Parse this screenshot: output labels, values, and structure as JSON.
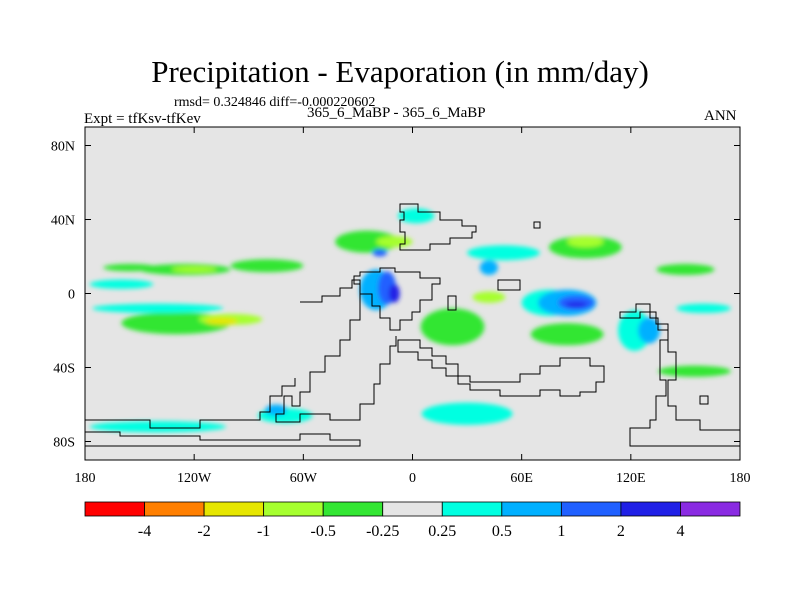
{
  "chart_data": {
    "type": "heatmap",
    "title": "Precipitation - Evaporation (in mm/day)",
    "stats_line": "rmsd= 0.324846 diff=-0.000220602",
    "experiment_label": "Expt = tfKsv-tfKev",
    "subtitle": "365_6_MaBP - 365_6_MaBP",
    "season": "ANN",
    "xlim": [
      -180,
      180
    ],
    "ylim": [
      -90,
      90
    ],
    "x_ticks": [
      {
        "value": -180,
        "label": "180"
      },
      {
        "value": -120,
        "label": "120W"
      },
      {
        "value": -60,
        "label": "60W"
      },
      {
        "value": 0,
        "label": "0"
      },
      {
        "value": 60,
        "label": "60E"
      },
      {
        "value": 120,
        "label": "120E"
      },
      {
        "value": 180,
        "label": "180"
      }
    ],
    "y_ticks": [
      {
        "value": 80,
        "label": "80N"
      },
      {
        "value": 40,
        "label": "40N"
      },
      {
        "value": 0,
        "label": "0"
      },
      {
        "value": -40,
        "label": "40S"
      },
      {
        "value": -80,
        "label": "80S"
      }
    ],
    "colorbar": {
      "colors": [
        "#ff0000",
        "#ff7f00",
        "#e6e600",
        "#a6ff2f",
        "#33e633",
        "#e5e5e5",
        "#00ffe1",
        "#00b0ff",
        "#2060ff",
        "#2020e6",
        "#8a2be2"
      ],
      "labels": [
        "-4",
        "-2",
        "-1",
        "-0.5",
        "-0.25",
        "0.25",
        "0.5",
        "1",
        "2",
        "4"
      ]
    },
    "background_color": "#e5e5e5",
    "anomaly_regions": [
      {
        "level": "-0.5",
        "lon": -155,
        "lat": 14,
        "dlon": 30,
        "dlat": 4
      },
      {
        "level": "-0.5",
        "lon": -125,
        "lat": 13,
        "dlon": 50,
        "dlat": 6
      },
      {
        "level": "-0.5",
        "lon": -80,
        "lat": 15,
        "dlon": 40,
        "dlat": 7
      },
      {
        "level": "-0.5",
        "lon": -130,
        "lat": -16,
        "dlon": 60,
        "dlat": 12
      },
      {
        "level": "-0.5",
        "lon": -25,
        "lat": 28,
        "dlon": 35,
        "dlat": 12
      },
      {
        "level": "-0.5",
        "lon": 22,
        "lat": -18,
        "dlon": 35,
        "dlat": 20
      },
      {
        "level": "-0.5",
        "lon": 85,
        "lat": -22,
        "dlon": 40,
        "dlat": 12
      },
      {
        "level": "-0.5",
        "lon": 95,
        "lat": 25,
        "dlon": 40,
        "dlat": 12
      },
      {
        "level": "-0.5",
        "lon": 150,
        "lat": 13,
        "dlon": 32,
        "dlat": 6
      },
      {
        "level": "-0.5",
        "lon": 155,
        "lat": -42,
        "dlon": 40,
        "dlat": 6
      },
      {
        "level": "-1",
        "lon": -100,
        "lat": -14,
        "dlon": 35,
        "dlat": 6
      },
      {
        "level": "-1",
        "lon": -120,
        "lat": 13,
        "dlon": 25,
        "dlat": 3
      },
      {
        "level": "-1",
        "lon": 95,
        "lat": 28,
        "dlon": 20,
        "dlat": 6
      },
      {
        "level": "-1",
        "lon": 42,
        "lat": -2,
        "dlon": 18,
        "dlat": 6
      },
      {
        "level": "-1",
        "lon": -10,
        "lat": 28,
        "dlon": 20,
        "dlat": 6
      },
      {
        "level": "-2",
        "lon": -105,
        "lat": -15,
        "dlon": 18,
        "dlat": 4
      },
      {
        "level": "0.25",
        "lon": -140,
        "lat": -8,
        "dlon": 72,
        "dlat": 5
      },
      {
        "level": "0.25",
        "lon": -160,
        "lat": 5,
        "dlon": 35,
        "dlat": 5
      },
      {
        "level": "0.25",
        "lon": 160,
        "lat": -8,
        "dlon": 30,
        "dlat": 5
      },
      {
        "level": "0.25",
        "lon": 2,
        "lat": 42,
        "dlon": 20,
        "dlat": 8
      },
      {
        "level": "0.25",
        "lon": 30,
        "lat": -65,
        "dlon": 50,
        "dlat": 12
      },
      {
        "level": "0.25",
        "lon": -140,
        "lat": -72,
        "dlon": 75,
        "dlat": 6
      },
      {
        "level": "0.25",
        "lon": -70,
        "lat": -66,
        "dlon": 30,
        "dlat": 8
      },
      {
        "level": "0.25",
        "lon": 50,
        "lat": 22,
        "dlon": 40,
        "dlat": 8
      },
      {
        "level": "0.25",
        "lon": 75,
        "lat": -5,
        "dlon": 30,
        "dlat": 14
      },
      {
        "level": "0.25",
        "lon": 122,
        "lat": -20,
        "dlon": 18,
        "dlat": 22
      },
      {
        "level": "0.5",
        "lon": -20,
        "lat": 2,
        "dlon": 18,
        "dlat": 22
      },
      {
        "level": "0.5",
        "lon": 85,
        "lat": -5,
        "dlon": 32,
        "dlat": 14
      },
      {
        "level": "0.5",
        "lon": 42,
        "lat": 14,
        "dlon": 10,
        "dlat": 8
      },
      {
        "level": "0.5",
        "lon": 130,
        "lat": -20,
        "dlon": 12,
        "dlat": 14
      },
      {
        "level": "0.5",
        "lon": -75,
        "lat": -63,
        "dlon": 12,
        "dlat": 6
      },
      {
        "level": "1",
        "lon": -14,
        "lat": 3,
        "dlon": 10,
        "dlat": 18
      },
      {
        "level": "1",
        "lon": 90,
        "lat": -5,
        "dlon": 20,
        "dlat": 8
      },
      {
        "level": "1",
        "lon": -18,
        "lat": 22,
        "dlon": 8,
        "dlat": 4
      },
      {
        "level": "2",
        "lon": -10,
        "lat": 0,
        "dlon": 6,
        "dlat": 10
      },
      {
        "level": "2",
        "lon": 90,
        "lat": -6,
        "dlon": 12,
        "dlat": 3
      }
    ]
  }
}
